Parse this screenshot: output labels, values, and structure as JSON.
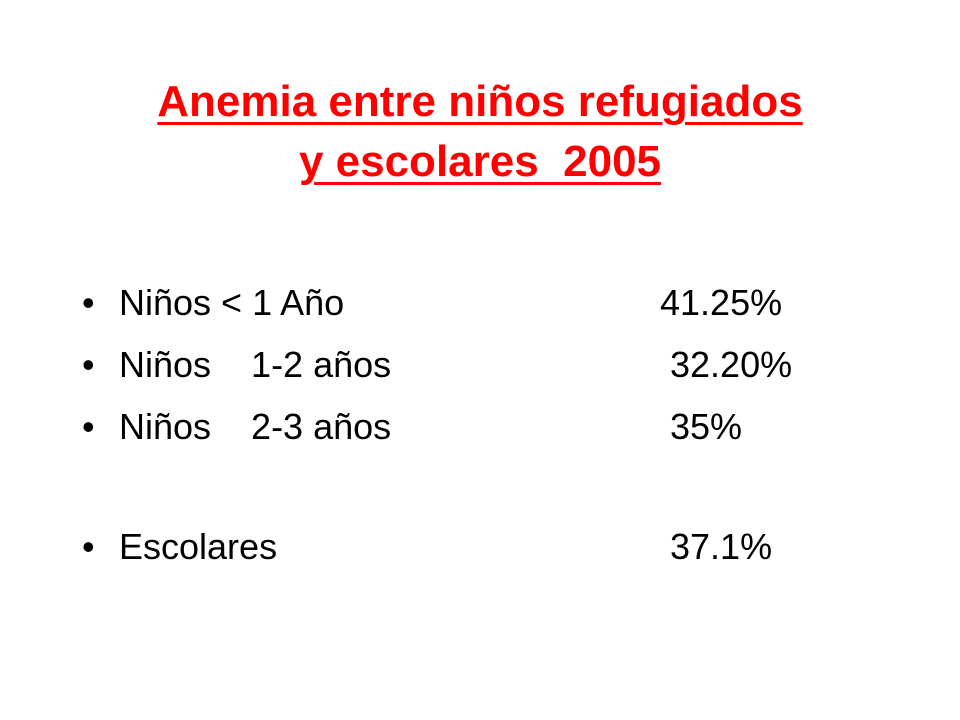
{
  "slide": {
    "title_line1": "Anemia entre niños refugiados",
    "title_line2": "y escolares  2005",
    "bullet_symbol": "•",
    "items": [
      {
        "label": "Niños < 1 Año",
        "value": "41.25%"
      },
      {
        "label": "Niños    1-2 años",
        "value": "32.20%"
      },
      {
        "label": "Niños    2-3 años",
        "value": "35%"
      },
      {
        "label": "Escolares",
        "value": "37.1%"
      }
    ],
    "colors": {
      "title": "#ff0000",
      "text": "#000000",
      "background": "#ffffff"
    }
  }
}
